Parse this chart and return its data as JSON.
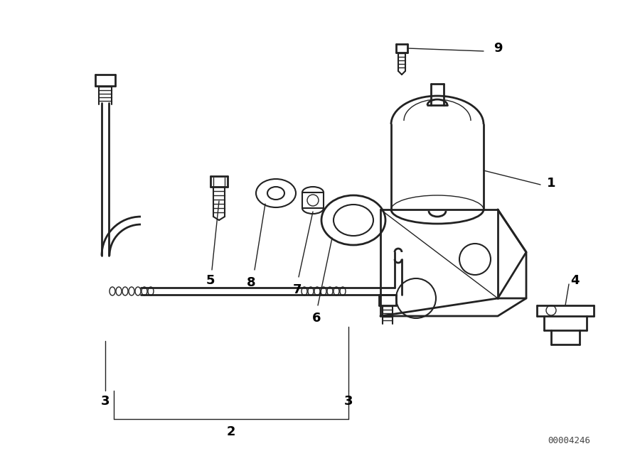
{
  "background_color": "#ffffff",
  "line_color": "#222222",
  "label_color": "#000000",
  "diagram_id": "00004246",
  "fig_width": 9.0,
  "fig_height": 6.35,
  "dpi": 100
}
